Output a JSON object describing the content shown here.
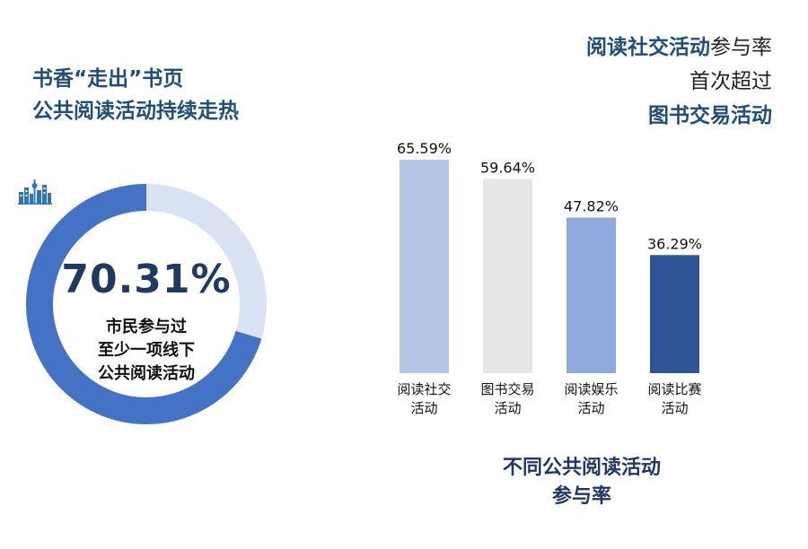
{
  "left_title": {
    "line1": "书香“走出”书页",
    "line2": "公共阅读活动持续走热"
  },
  "right_headline": {
    "line1_highlight": "阅读社交活动",
    "line1_rest": "参与率",
    "line2": "首次超过",
    "line3_highlight": "图书交易活动"
  },
  "donut": {
    "value_text": "70.31%",
    "value": 70.31,
    "label_lines": [
      "市民参与过",
      "至少一项线下",
      "公共阅读活动"
    ],
    "icon": "city-skyline-icon",
    "colors": {
      "filled": "#4472c4",
      "remaining": "#dae3f3"
    }
  },
  "chart_title": {
    "line1": "不同公共阅读活动",
    "line2": "参与率"
  },
  "chart_data": {
    "type": "bar",
    "categories": [
      [
        "阅读社交",
        "活动"
      ],
      [
        "图书交易",
        "活动"
      ],
      [
        "阅读娱乐",
        "活动"
      ],
      [
        "阅读比赛",
        "活动"
      ]
    ],
    "values": [
      65.59,
      59.64,
      47.82,
      36.29
    ],
    "value_labels": [
      "65.59%",
      "59.64%",
      "47.82%",
      "36.29%"
    ],
    "colors": [
      "#b4c7e7",
      "#e7e6e6",
      "#8faadc",
      "#2f5597"
    ],
    "ylim": [
      0,
      65.59
    ],
    "grid": false
  }
}
